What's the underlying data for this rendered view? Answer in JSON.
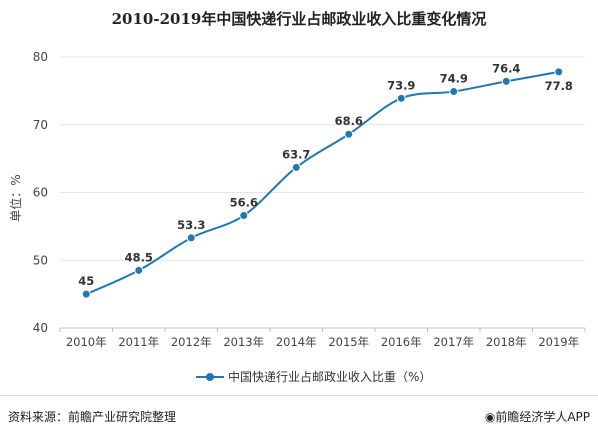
{
  "chart_data": {
    "type": "line",
    "title": "2010-2019年中国快递行业占邮政业收入比重变化情况",
    "ylabel": "单位：%",
    "xlabel": "",
    "categories": [
      "2010年",
      "2011年",
      "2012年",
      "2013年",
      "2014年",
      "2015年",
      "2016年",
      "2017年",
      "2018年",
      "2019年"
    ],
    "series": [
      {
        "name": "中国快递行业占邮政业收入比重（%）",
        "values": [
          45,
          48.5,
          53.3,
          56.6,
          63.7,
          68.6,
          73.9,
          74.9,
          76.4,
          77.8
        ],
        "color": "#1f77b4"
      }
    ],
    "ylim": [
      40,
      80
    ],
    "yticks": [
      40,
      50,
      60,
      70,
      80
    ],
    "grid": "horizontal",
    "legend": "bottom-center",
    "data_labels": true
  },
  "footer": {
    "source": "资料来源：前瞻产业研究院整理",
    "brand": "前瞻经济学人APP"
  }
}
